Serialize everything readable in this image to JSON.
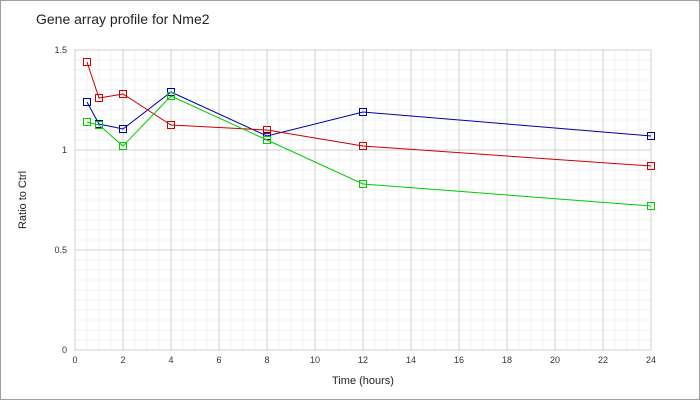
{
  "chart_data": {
    "type": "line",
    "title": "Gene array profile for Nme2",
    "xlabel": "Time (hours)",
    "ylabel": "Ratio to Ctrl",
    "xlim": [
      0,
      24
    ],
    "ylim": [
      0,
      1.5
    ],
    "x_ticks": [
      "0",
      "2",
      "4",
      "6",
      "8",
      "10",
      "12",
      "14",
      "16",
      "18",
      "20",
      "22",
      "24"
    ],
    "y_ticks": [
      "0",
      "0.5",
      "1",
      "1.5"
    ],
    "x_tick_values": [
      0,
      2,
      4,
      6,
      8,
      10,
      12,
      14,
      16,
      18,
      20,
      22,
      24
    ],
    "y_tick_values": [
      0,
      0.5,
      1,
      1.5
    ],
    "grid": true,
    "marker": "open-square",
    "series": [
      {
        "color": "#0000aa",
        "x": [
          0.5,
          1,
          2,
          4,
          8,
          12,
          24
        ],
        "y": [
          1.24,
          1.13,
          1.105,
          1.29,
          1.07,
          1.19,
          1.07
        ]
      },
      {
        "color": "#cc0000",
        "x": [
          0.5,
          1,
          2,
          4,
          8,
          12,
          24
        ],
        "y": [
          1.44,
          1.26,
          1.28,
          1.125,
          1.1,
          1.02,
          0.92
        ]
      },
      {
        "color": "#00cc00",
        "x": [
          0.5,
          1,
          2,
          4,
          8,
          12,
          24
        ],
        "y": [
          1.14,
          1.125,
          1.02,
          1.27,
          1.05,
          0.83,
          0.72
        ]
      }
    ]
  }
}
